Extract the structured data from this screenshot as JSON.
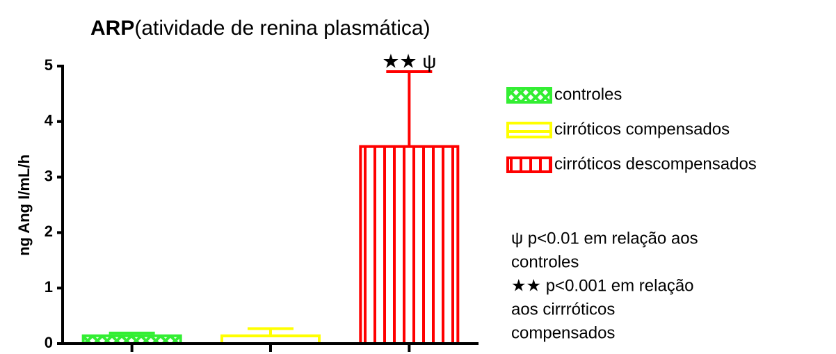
{
  "chart_data": {
    "type": "bar",
    "title_parts": [
      "ARP",
      "(atividade de renina plasmática)"
    ],
    "ylabel": "ng Ang I/mL/h",
    "categories": [
      null,
      null,
      null
    ],
    "values": [
      0.14,
      0.14,
      3.55
    ],
    "errors": [
      0.05,
      0.13,
      1.35
    ],
    "colors": [
      "#33ee33",
      "#ffff00",
      "#ff0000"
    ],
    "patterns": [
      "crosshatch",
      "horizontal",
      "vertical"
    ],
    "legend": [
      "controles",
      "cirróticos compensados",
      "cirróticos descompensados"
    ],
    "ylim": [
      0,
      5
    ],
    "yticks": [
      0,
      1,
      2,
      3,
      4,
      5
    ],
    "annotation": "★★ ψ",
    "notes": [
      "ψ p<0.01 em relação aos",
      "controles",
      "★★ p<0.001 em relação",
      "aos cirrróticos",
      "compensados"
    ]
  }
}
